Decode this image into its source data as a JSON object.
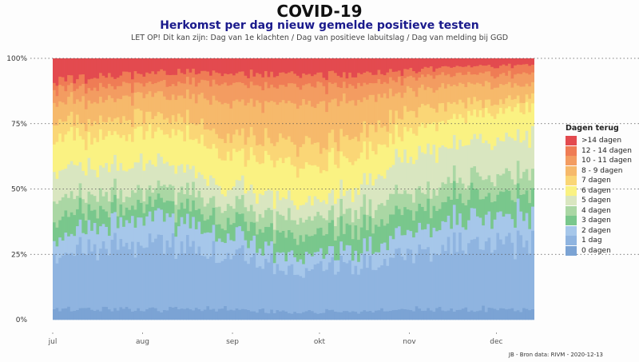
{
  "chart_data": {
    "type": "bar",
    "stacked": true,
    "normalized": true,
    "title": "COVID-19",
    "subtitle": "Herkomst per dag nieuw gemelde positieve testen",
    "note": "LET OP! Dit kan zijn: Dag van 1e klachten / Dag van positieve labuitslag / Dag van melding bij GGD",
    "caption": "JB - Bron data: RIVM - 2020-12-13",
    "ylim": [
      0,
      100
    ],
    "yticks": [
      {
        "value": 0,
        "label": "0%"
      },
      {
        "value": 25,
        "label": "25%"
      },
      {
        "value": 50,
        "label": "50%"
      },
      {
        "value": 75,
        "label": "75%"
      },
      {
        "value": 100,
        "label": "100%"
      }
    ],
    "xrange": [
      "2020-07-01",
      "2020-12-13"
    ],
    "xticks": [
      {
        "date": "2020-07-01",
        "label": "jul"
      },
      {
        "date": "2020-08-01",
        "label": "aug"
      },
      {
        "date": "2020-09-01",
        "label": "sep"
      },
      {
        "date": "2020-10-01",
        "label": "okt"
      },
      {
        "date": "2020-11-01",
        "label": "nov"
      },
      {
        "date": "2020-12-01",
        "label": "dec"
      }
    ],
    "grid": "horizontal dotted",
    "legend_position": "right",
    "legend_title": "Dagen terug",
    "categories": [
      {
        "label": "0 dagen",
        "color": "#7ba3d4"
      },
      {
        "label": "1 dag",
        "color": "#8fb4e0"
      },
      {
        "label": "2 dagen",
        "color": "#a6c7ea"
      },
      {
        "label": "3 dagen",
        "color": "#79c78c"
      },
      {
        "label": "4 dagen",
        "color": "#aad7a4"
      },
      {
        "label": "5 dagen",
        "color": "#d9e6c0"
      },
      {
        "label": "6 dagen",
        "color": "#faf282"
      },
      {
        "label": "7 dagen",
        "color": "#fad676"
      },
      {
        "label": "8 - 9 dagen",
        "color": "#f6b96b"
      },
      {
        "label": "10 - 11 dagen",
        "color": "#f39c61"
      },
      {
        "label": "12 - 14 dagen",
        "color": "#ef7c55"
      },
      {
        "label": ">14 dagen",
        "color": "#e34a4f"
      }
    ],
    "series_shares_percent": [
      {
        "date": "2020-07-01",
        "values": [
          4,
          20,
          6,
          8,
          8,
          11,
          13,
          6,
          8,
          5,
          3,
          8
        ]
      },
      {
        "date": "2020-07-15",
        "values": [
          4,
          24,
          8,
          6,
          6,
          10,
          12,
          6,
          8,
          5,
          4,
          7
        ]
      },
      {
        "date": "2020-08-01",
        "values": [
          4,
          26,
          10,
          5,
          5,
          10,
          12,
          6,
          8,
          4,
          4,
          6
        ]
      },
      {
        "date": "2020-08-15",
        "values": [
          4,
          24,
          9,
          6,
          6,
          9,
          13,
          6,
          9,
          5,
          4,
          5
        ]
      },
      {
        "date": "2020-09-01",
        "values": [
          4,
          20,
          7,
          6,
          6,
          7,
          13,
          7,
          13,
          7,
          4,
          6
        ]
      },
      {
        "date": "2020-09-15",
        "values": [
          3,
          18,
          6,
          7,
          6,
          7,
          14,
          8,
          14,
          7,
          4,
          6
        ]
      },
      {
        "date": "2020-10-01",
        "values": [
          3,
          16,
          5,
          8,
          6,
          6,
          14,
          9,
          16,
          7,
          4,
          6
        ]
      },
      {
        "date": "2020-10-15",
        "values": [
          3,
          18,
          6,
          9,
          7,
          9,
          12,
          8,
          12,
          6,
          4,
          6
        ]
      },
      {
        "date": "2020-11-01",
        "values": [
          4,
          22,
          8,
          8,
          7,
          14,
          10,
          7,
          7,
          5,
          3,
          5
        ]
      },
      {
        "date": "2020-11-15",
        "values": [
          4,
          25,
          9,
          9,
          7,
          13,
          10,
          6,
          7,
          4,
          3,
          3
        ]
      },
      {
        "date": "2020-12-01",
        "values": [
          4,
          26,
          10,
          8,
          7,
          14,
          11,
          4,
          6,
          4,
          3,
          3
        ]
      },
      {
        "date": "2020-12-13",
        "values": [
          4,
          26,
          11,
          8,
          8,
          14,
          11,
          4,
          5,
          4,
          3,
          2
        ]
      }
    ]
  }
}
